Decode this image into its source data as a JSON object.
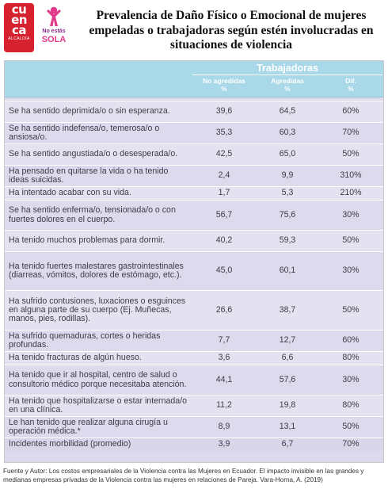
{
  "logos": {
    "cuenca": {
      "text": "cu\nen\nca",
      "caption": "ALCALDÍA"
    },
    "sola": {
      "line1": "No estás",
      "line2": "SOLA"
    }
  },
  "title": "Prevalencia de Daño Físico o Emocional de mujeres empeladas o trabajadoras según estén involucradas en situaciones de violencia",
  "table": {
    "group_header": "Trabajadoras",
    "columns": [
      {
        "name": "No agredidas",
        "unit": "%"
      },
      {
        "name": "Agredidas",
        "unit": "%"
      },
      {
        "name": "Dif.",
        "unit": "%"
      }
    ],
    "rows": [
      {
        "label": "Se ha sentido deprimida/o o sin esperanza.",
        "no_agredidas": "39,6",
        "agredidas": "64,5",
        "dif": "60%"
      },
      {
        "label": "Se ha sentido indefensa/o, temerosa/o o ansiosa/o.",
        "no_agredidas": "35,3",
        "agredidas": "60,3",
        "dif": "70%"
      },
      {
        "label": "Se ha sentido angustiada/o o desesperada/o.",
        "no_agredidas": "42,5",
        "agredidas": "65,0",
        "dif": "50%"
      },
      {
        "label": "Ha pensado en quitarse la vida o ha tenido ideas suicidas.",
        "no_agredidas": "2,4",
        "agredidas": "9,9",
        "dif": "310%"
      },
      {
        "label": "Ha intentado acabar con su vida.",
        "no_agredidas": "1,7",
        "agredidas": "5,3",
        "dif": "210%"
      },
      {
        "label": "Se ha sentido enferma/o, tensionada/o o con fuertes dolores en el cuerpo.",
        "no_agredidas": "56,7",
        "agredidas": "75,6",
        "dif": "30%"
      },
      {
        "label": "Ha tenido muchos problemas para dormir.",
        "no_agredidas": "40,2",
        "agredidas": "59,3",
        "dif": "50%"
      },
      {
        "label": "Ha tenido fuertes malestares gastrointestinales (diarreas, vómitos, dolores de estómago, etc.).",
        "no_agredidas": "45,0",
        "agredidas": "60,1",
        "dif": "30%"
      },
      {
        "label": "Ha sufrido contusiones, luxaciones o esguinces en alguna parte de su cuerpo (Ej. Muñecas, manos, pies, rodillas).",
        "no_agredidas": "26,6",
        "agredidas": "38,7",
        "dif": "50%"
      },
      {
        "label": "Ha sufrido quemaduras, cortes o heridas profundas.",
        "no_agredidas": "7,7",
        "agredidas": "12,7",
        "dif": "60%"
      },
      {
        "label": "Ha tenido fracturas de algún hueso.",
        "no_agredidas": "3,6",
        "agredidas": "6,6",
        "dif": "80%"
      },
      {
        "label": "Ha tenido que ir al hospital, centro de salud o consultorio médico porque necesitaba atención.",
        "no_agredidas": "44,1",
        "agredidas": "57,6",
        "dif": "30%"
      },
      {
        "label": "Ha tenido que hospitalizarse o estar internada/o en una clínica.",
        "no_agredidas": "11,2",
        "agredidas": "19,8",
        "dif": "80%"
      },
      {
        "label": "Le han tenido que realizar alguna cirugía u operación médica.*",
        "no_agredidas": "8,9",
        "agredidas": "13,1",
        "dif": "50%"
      },
      {
        "label": "Incidentes morbilidad (promedio)",
        "no_agredidas": "3,9",
        "agredidas": "6,7",
        "dif": "70%"
      }
    ]
  },
  "source": "Fuente y Autor: Los costos empresariales de la Violencia contra las Mujeres en Ecuador. El impacto invisible en las grandes y medianas empresas privadas de la Violencia contra las mujeres en relaciones de Pareja. Vara-Horna, A. (2019)"
}
